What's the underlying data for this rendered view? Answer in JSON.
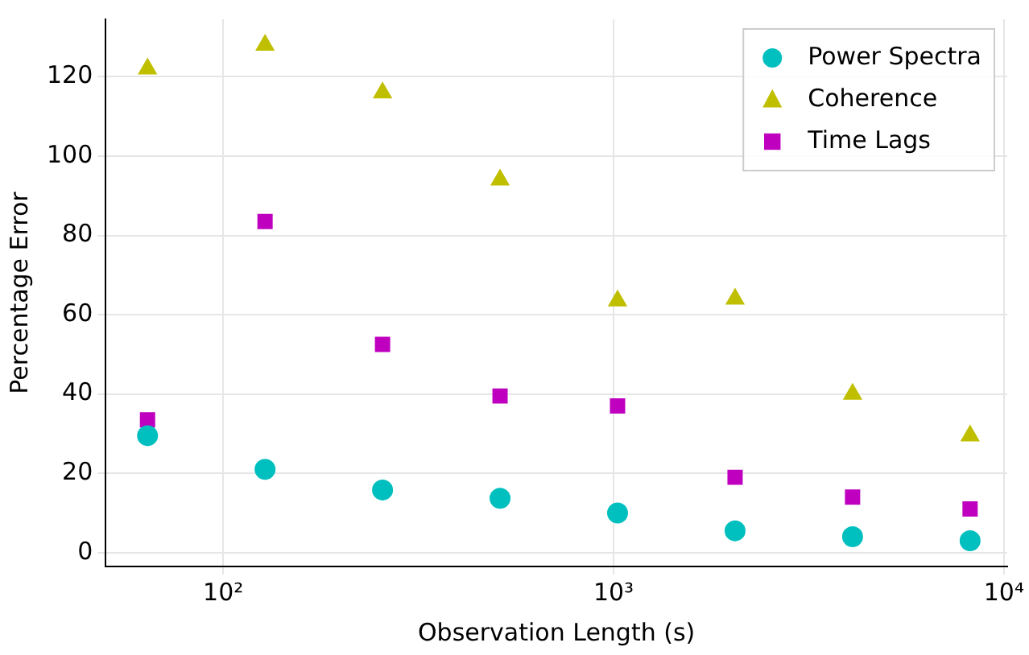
{
  "chart_data": {
    "type": "scatter",
    "xlabel": "Observation Length (s)",
    "ylabel": "Percentage Error",
    "x": [
      64,
      128,
      256,
      512,
      1024,
      2048,
      4096,
      8192
    ],
    "series": [
      {
        "name": "Power Spectra",
        "color": "#00bfbf",
        "marker": "circle",
        "values": [
          29.5,
          21,
          15.8,
          13.7,
          10,
          5.5,
          4,
          3
        ]
      },
      {
        "name": "Coherence",
        "color": "#bfbf00",
        "marker": "triangle",
        "values": [
          122,
          128,
          116,
          94,
          63.5,
          64,
          40,
          29.5
        ]
      },
      {
        "name": "Time Lags",
        "color": "#bf00bf",
        "marker": "square",
        "values": [
          33.5,
          83.5,
          52.5,
          39.5,
          37,
          19,
          14,
          11
        ]
      }
    ],
    "log": "x",
    "xlim": [
      50,
      10200
    ],
    "xticks": [
      {
        "value": 100,
        "label": "10²"
      },
      {
        "value": 1000,
        "label": "10³"
      },
      {
        "value": 10000,
        "label": "10⁴"
      }
    ],
    "ylim": [
      -3.5,
      134.5
    ],
    "yticks": [
      0,
      20,
      40,
      60,
      80,
      100,
      120
    ],
    "grid": true,
    "legend": "top right"
  }
}
